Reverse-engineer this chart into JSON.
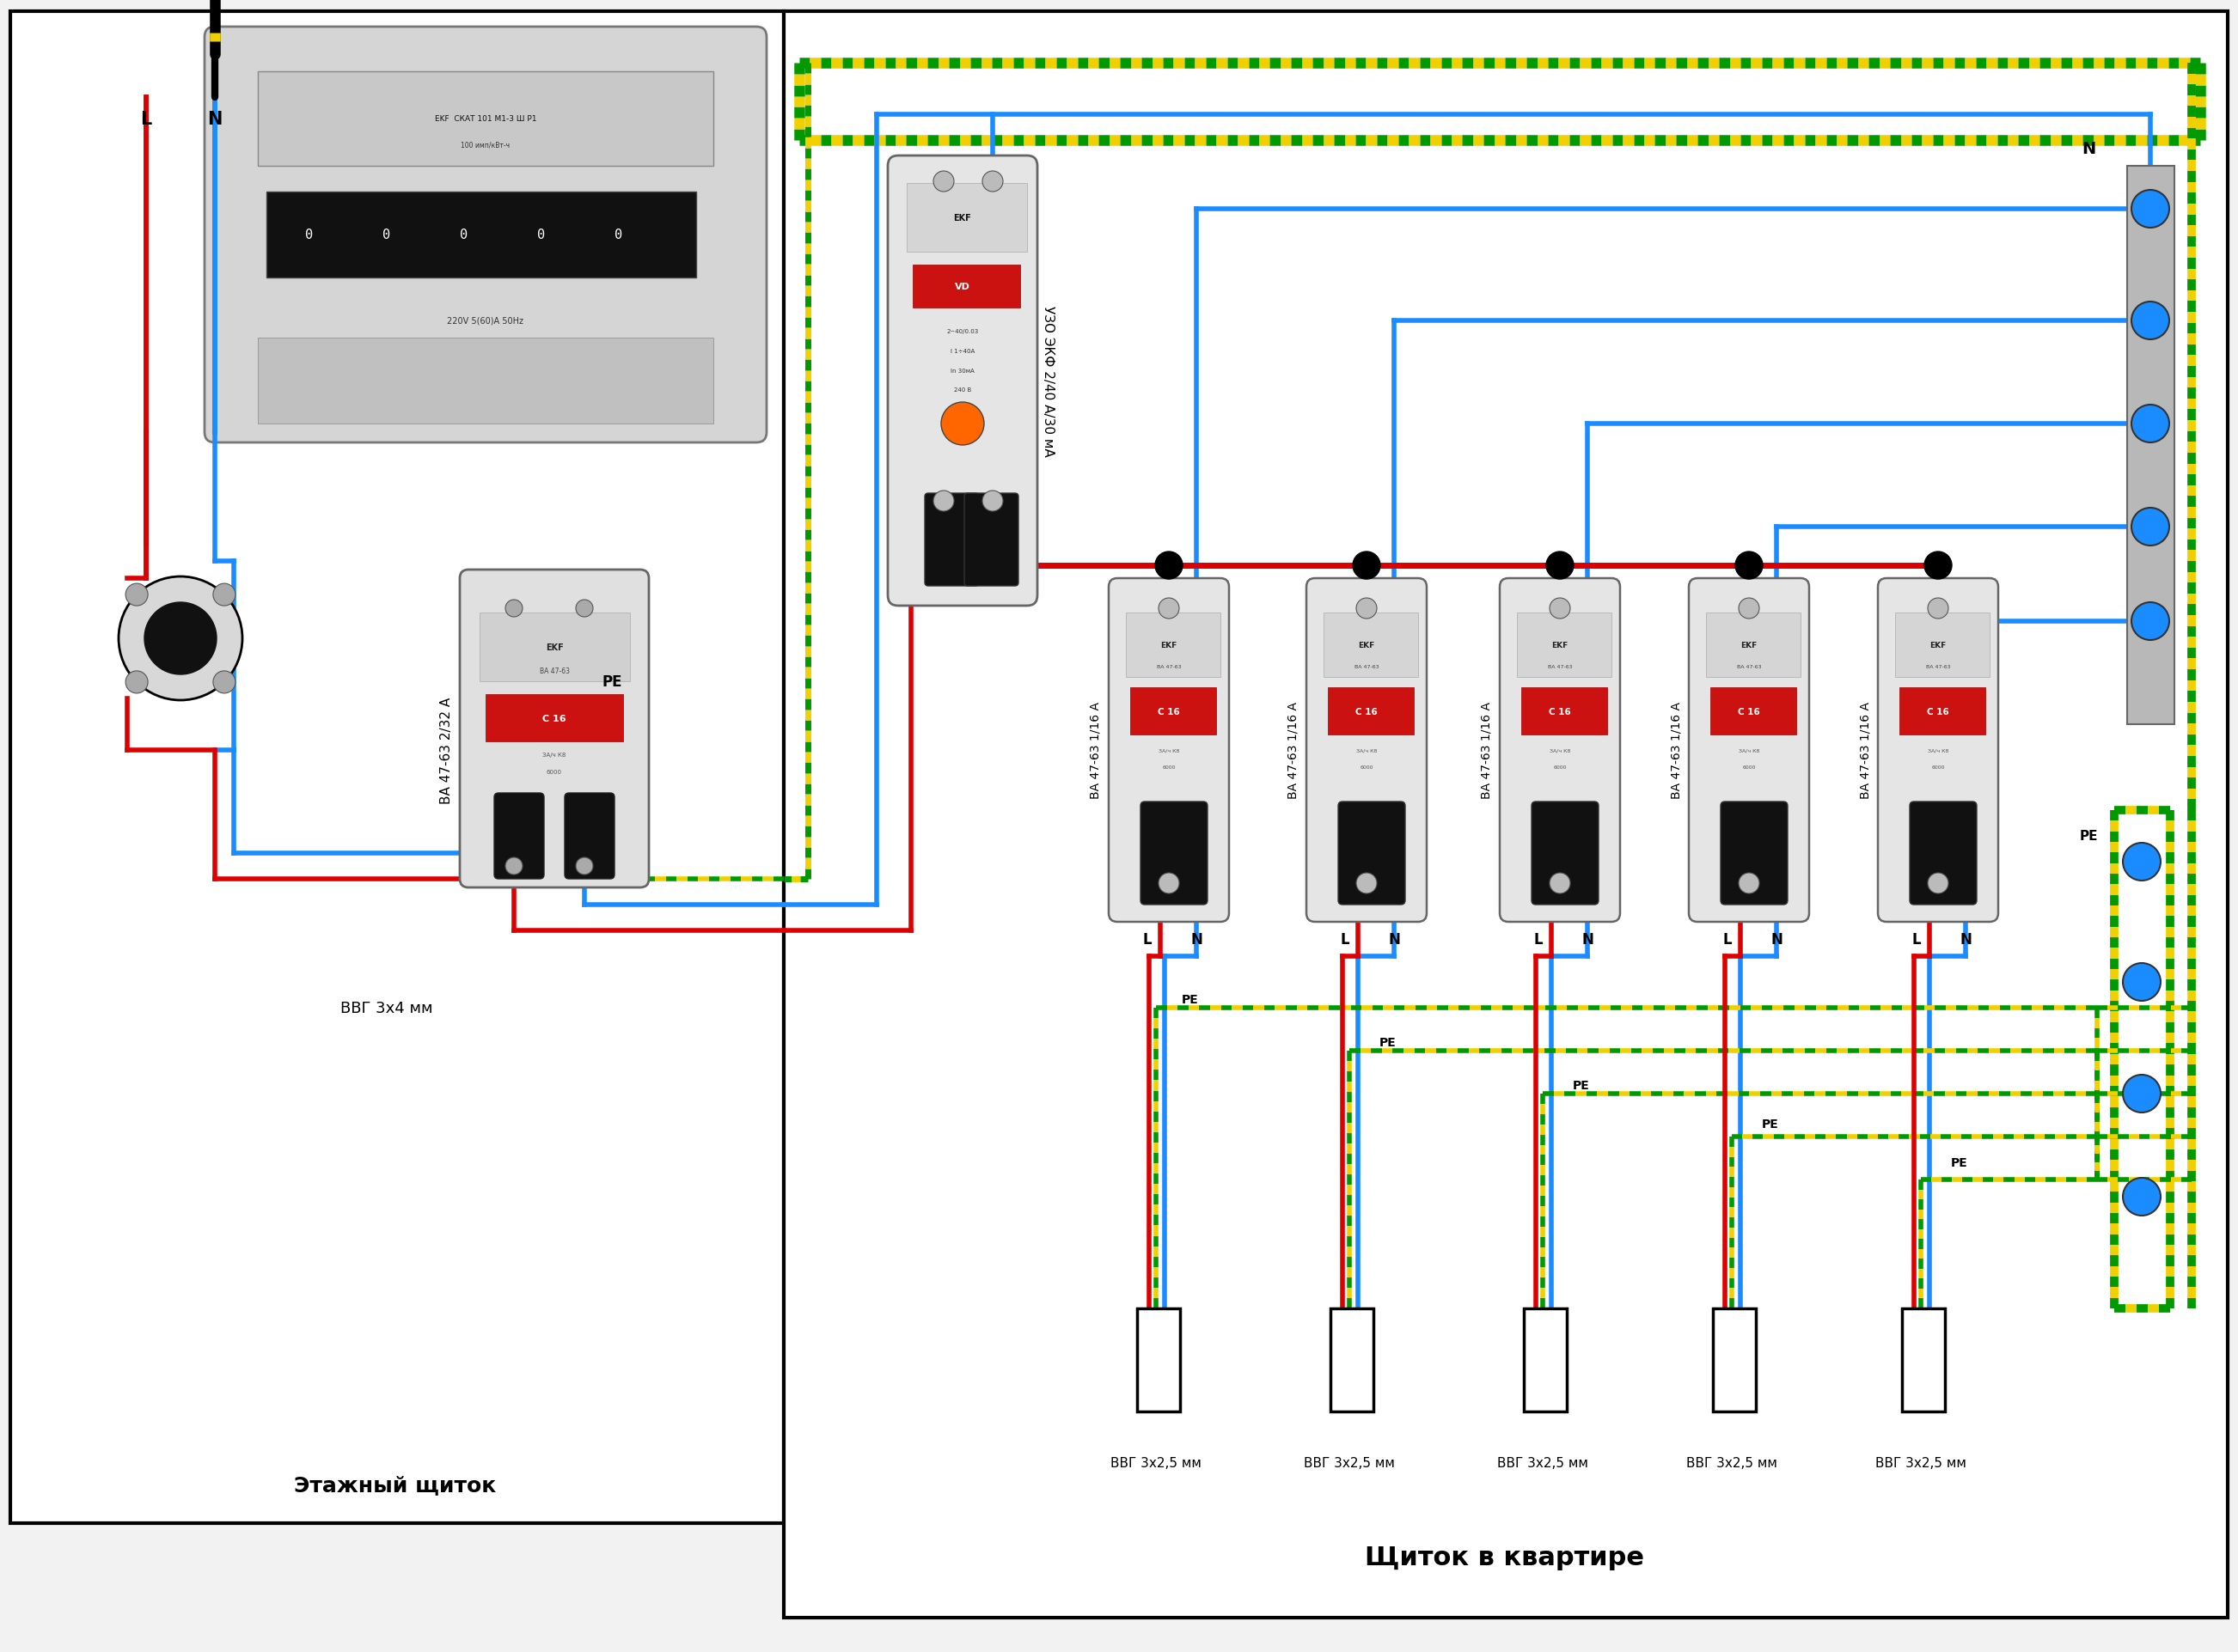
{
  "left_panel_label": "Этажный щиток",
  "right_panel_label": "Щиток в квартире",
  "left_breaker_label": "ВА 47-63 2/32 А",
  "left_cable_label": "ВВГ 3х4 мм",
  "uzo_label": "УЗО ЭКФ 2/40 А/30 мА",
  "right_breaker_labels": [
    "ВА 47-63 1/16 А",
    "ВА 47-63 1/16 А",
    "ВА 47-63 1/16 А",
    "ВА 47-63 1/16 А",
    "ВА 47-63 1/16 А"
  ],
  "right_cable_labels": [
    "ВВГ 3х2,5 мм",
    "ВВГ 3х2,5 мм",
    "ВВГ 3х2,5 мм",
    "ВВГ 3х2,5 мм",
    "ВВГ 3х2,5 мм"
  ],
  "color_red": "#dd0000",
  "color_blue": "#1a8cff",
  "color_green": "#009900",
  "color_yellow": "#f0d000",
  "color_black": "#000000",
  "color_white": "#ffffff",
  "color_bg": "#f2f2f2",
  "color_gray_light": "#e0e0e0",
  "color_gray_med": "#cccccc",
  "color_gray_dark": "#888888"
}
